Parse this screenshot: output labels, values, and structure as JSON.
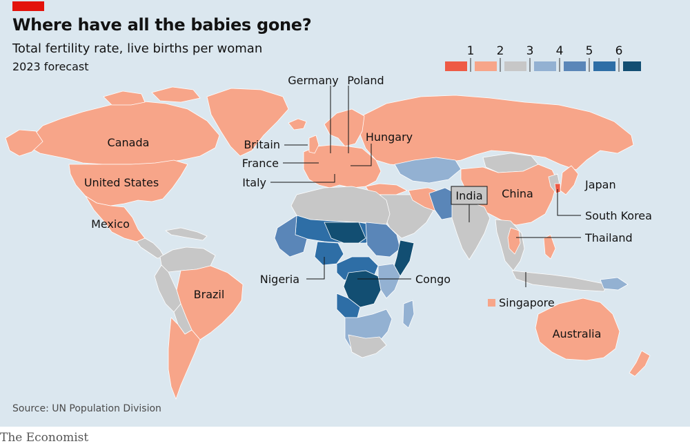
{
  "header": {
    "title": "Where have all the babies gone?",
    "subtitle": "Total fertility rate, live births per woman",
    "subtitle2": "2023 forecast"
  },
  "footer": {
    "source": "Source: UN Population Division",
    "brand": "The Economist"
  },
  "colors": {
    "ocean": "#dbe7ef",
    "bins": [
      "#ee5a45",
      "#f7a589",
      "#c7c7c7",
      "#93b1d2",
      "#5a86b8",
      "#2e6ea6",
      "#124e72"
    ]
  },
  "legend": {
    "ticks": [
      "1",
      "2",
      "3",
      "4",
      "5",
      "6"
    ]
  },
  "map_labels": {
    "germany": "Germany",
    "poland": "Poland",
    "hungary": "Hungary",
    "britain": "Britain",
    "france": "France",
    "italy": "Italy",
    "canada": "Canada",
    "united_states": "United States",
    "mexico": "Mexico",
    "brazil": "Brazil",
    "india": "India",
    "china": "China",
    "japan": "Japan",
    "south_korea": "South Korea",
    "thailand": "Thailand",
    "singapore": "Singapore",
    "nigeria": "Nigeria",
    "congo": "Congo",
    "australia": "Australia"
  }
}
